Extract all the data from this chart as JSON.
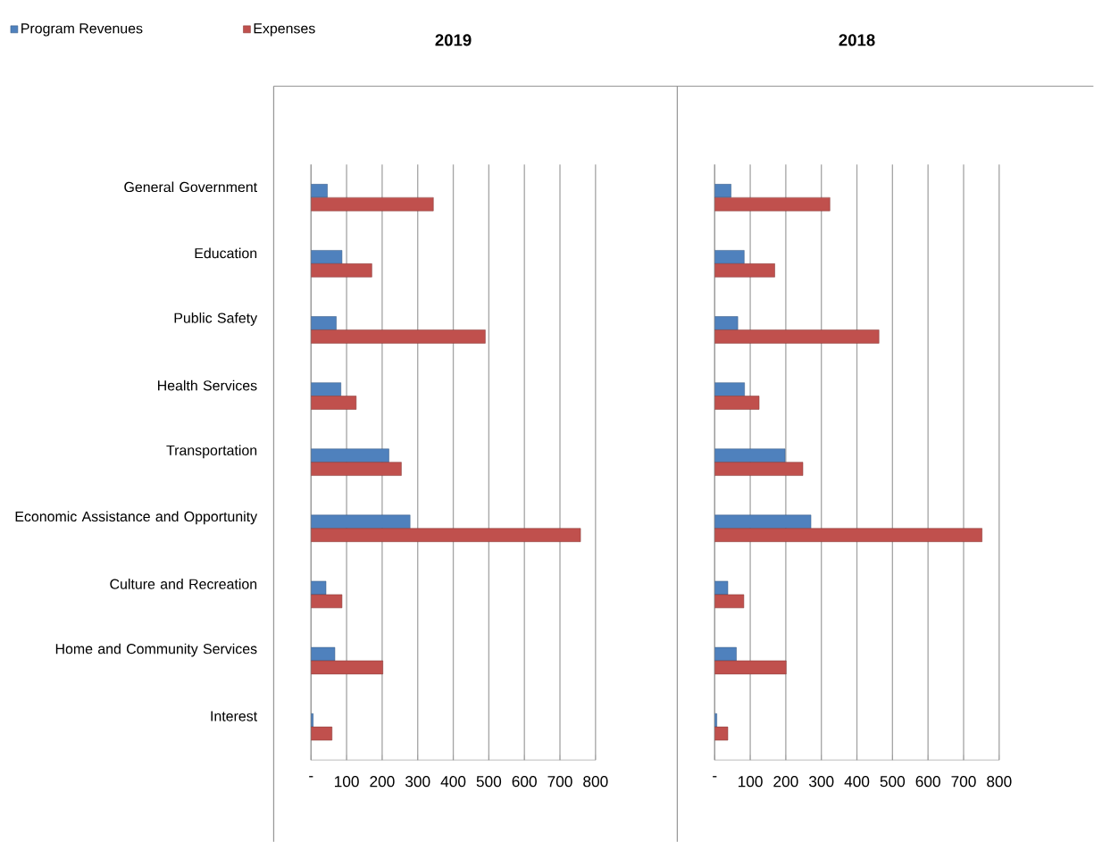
{
  "chart_data": [
    {
      "type": "bar",
      "orientation": "horizontal",
      "title": "2019",
      "categories": [
        "General Government",
        "Education",
        "Public Safety",
        "Health Services",
        "Transportation",
        "Economic Assistance and Opportunity",
        "Culture and Recreation",
        "Home and Community Services",
        "Interest"
      ],
      "series": [
        {
          "name": "Program Revenues",
          "color": "#4f81bd",
          "values": [
            46,
            87,
            71,
            84,
            219,
            279,
            42,
            67,
            6
          ]
        },
        {
          "name": "Expenses",
          "color": "#c0504d",
          "values": [
            344,
            171,
            490,
            127,
            254,
            758,
            87,
            202,
            59
          ]
        }
      ],
      "xlim": [
        0,
        800
      ],
      "xticks": [
        {
          "value": 0,
          "label": "-"
        },
        100,
        200,
        300,
        400,
        500,
        600,
        700,
        800
      ],
      "grid": "x",
      "legend": "top left"
    },
    {
      "type": "bar",
      "orientation": "horizontal",
      "title": "2018",
      "categories": [
        null,
        null,
        null,
        null,
        null,
        null,
        null,
        null,
        null
      ],
      "series": [
        {
          "color": "#4f81bd",
          "values": [
            46,
            83,
            65,
            84,
            198,
            271,
            37,
            61,
            6
          ]
        },
        {
          "color": "#c0504d",
          "values": [
            324,
            169,
            462,
            125,
            248,
            752,
            82,
            201,
            37
          ]
        }
      ],
      "xlim": [
        0,
        800
      ],
      "xticks": [
        {
          "value": 0,
          "label": "-"
        },
        100,
        200,
        300,
        400,
        500,
        600,
        700,
        800
      ],
      "grid": "x",
      "tick_labels": "x"
    }
  ]
}
